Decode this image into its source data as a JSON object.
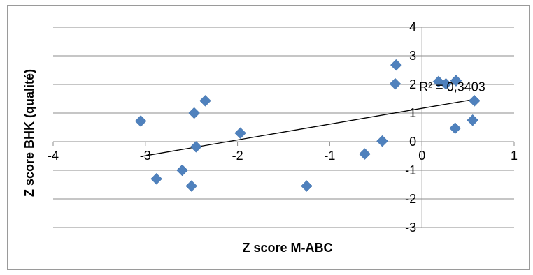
{
  "chart_data": {
    "type": "scatter",
    "title": "",
    "xlabel": "Z score M-ABC",
    "ylabel": "Z score BHK (qualité)",
    "xlim": [
      -4,
      1
    ],
    "ylim": [
      -3,
      4
    ],
    "x_ticks": [
      -4,
      -3,
      -2,
      -1,
      0,
      1
    ],
    "y_ticks": [
      -3,
      -2,
      -1,
      0,
      1,
      2,
      3,
      4
    ],
    "x_tick_labels": [
      "-4",
      "-3",
      "-2",
      "-1",
      "0",
      "1"
    ],
    "y_tick_labels": [
      "-3",
      "-2",
      "-1",
      "0",
      "1",
      "2",
      "3",
      "4"
    ],
    "grid": "horizontal",
    "legend": "none",
    "marker": "diamond",
    "marker_color": "#4f81bd",
    "trendline_color": "#000000",
    "series": [
      {
        "points": [
          {
            "x": -3.05,
            "y": 0.72
          },
          {
            "x": -2.88,
            "y": -1.3
          },
          {
            "x": -2.6,
            "y": -1.0
          },
          {
            "x": -2.5,
            "y": -1.55
          },
          {
            "x": -2.47,
            "y": 1.0
          },
          {
            "x": -2.45,
            "y": -0.18
          },
          {
            "x": -2.35,
            "y": 1.43
          },
          {
            "x": -1.97,
            "y": 0.3
          },
          {
            "x": -1.25,
            "y": -1.55
          },
          {
            "x": -0.62,
            "y": -0.43
          },
          {
            "x": -0.43,
            "y": 0.02
          },
          {
            "x": -0.28,
            "y": 2.68
          },
          {
            "x": -0.29,
            "y": 2.02
          },
          {
            "x": 0.18,
            "y": 2.1
          },
          {
            "x": 0.26,
            "y": 2.02
          },
          {
            "x": 0.37,
            "y": 2.13
          },
          {
            "x": 0.36,
            "y": 0.47
          },
          {
            "x": 0.55,
            "y": 0.75
          },
          {
            "x": 0.57,
            "y": 1.43
          }
        ]
      }
    ],
    "trendline": {
      "type": "linear",
      "x": [
        -3.05,
        0.57
      ],
      "y": [
        -0.52,
        1.48
      ]
    },
    "annotations": [
      {
        "text": "R² = 0,3403",
        "x": 0.52,
        "y": 1.62
      }
    ]
  }
}
